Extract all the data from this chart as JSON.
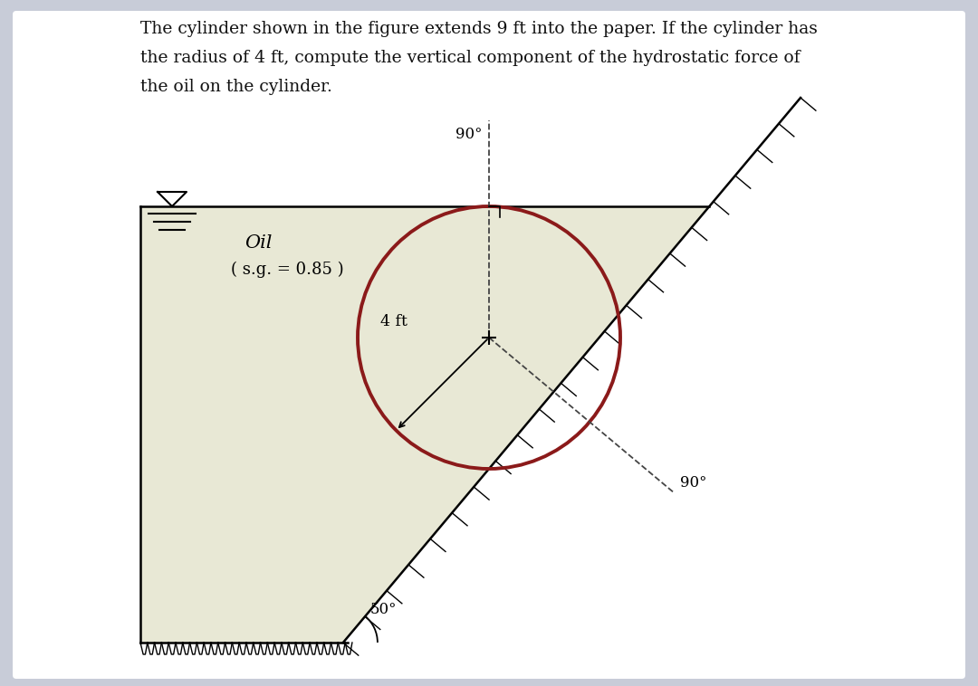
{
  "oil_color": "#e8e8d5",
  "oil_label": "Oil",
  "sg_label": "( s.g. = 0.85 )",
  "radius_label": "4 ft",
  "angle_90_top": "90°",
  "angle_90_right": "90°",
  "angle_50": "50°",
  "circle_color": "#8b1a1a",
  "circle_linewidth": 2.8,
  "dashed_color": "#444444",
  "wall_color": "#222222",
  "hatch_color": "#555555",
  "background_color": "#c8ccd8",
  "white_color": "#ffffff",
  "text_color": "#111111",
  "title_line1": "The cylinder shown in the figure extends 9 ft into the paper. If the cylinder has",
  "title_line2": "the radius of 4 ft, compute the vertical component of the hydrostatic force of",
  "title_line3": "the oil on the cylinder."
}
